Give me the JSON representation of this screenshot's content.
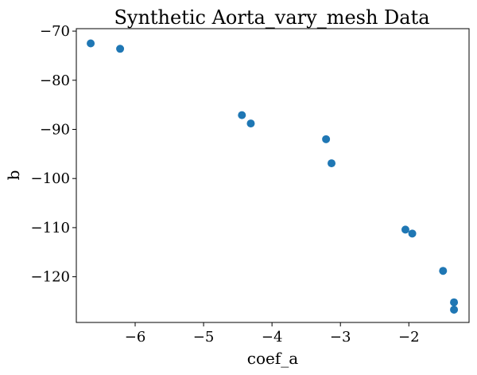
{
  "chart_data": {
    "type": "scatter",
    "title": "Synthetic Aorta_vary_mesh Data",
    "xlabel": "coef_a",
    "ylabel": "b",
    "xlim": [
      -6.86,
      -1.12
    ],
    "ylim": [
      -129.3,
      -69.5
    ],
    "xticks": [
      -6,
      -5,
      -4,
      -3,
      -2
    ],
    "xtick_labels": [
      "−6",
      "−5",
      "−4",
      "−3",
      "−2"
    ],
    "yticks": [
      -70,
      -80,
      -90,
      -100,
      -110,
      -120
    ],
    "ytick_labels": [
      "−70",
      "−80",
      "−90",
      "−100",
      "−110",
      "−120"
    ],
    "grid": false,
    "marker_color": "#1f77b4",
    "series": [
      {
        "x": [
          -6.65,
          -6.22,
          -4.44,
          -4.31,
          -3.21,
          -3.13,
          -2.05,
          -1.95,
          -1.5,
          -1.34,
          -1.34
        ],
        "y": [
          -72.5,
          -73.6,
          -87.1,
          -88.8,
          -92.0,
          -96.9,
          -110.4,
          -111.2,
          -118.8,
          -125.2,
          -126.7
        ]
      }
    ]
  }
}
